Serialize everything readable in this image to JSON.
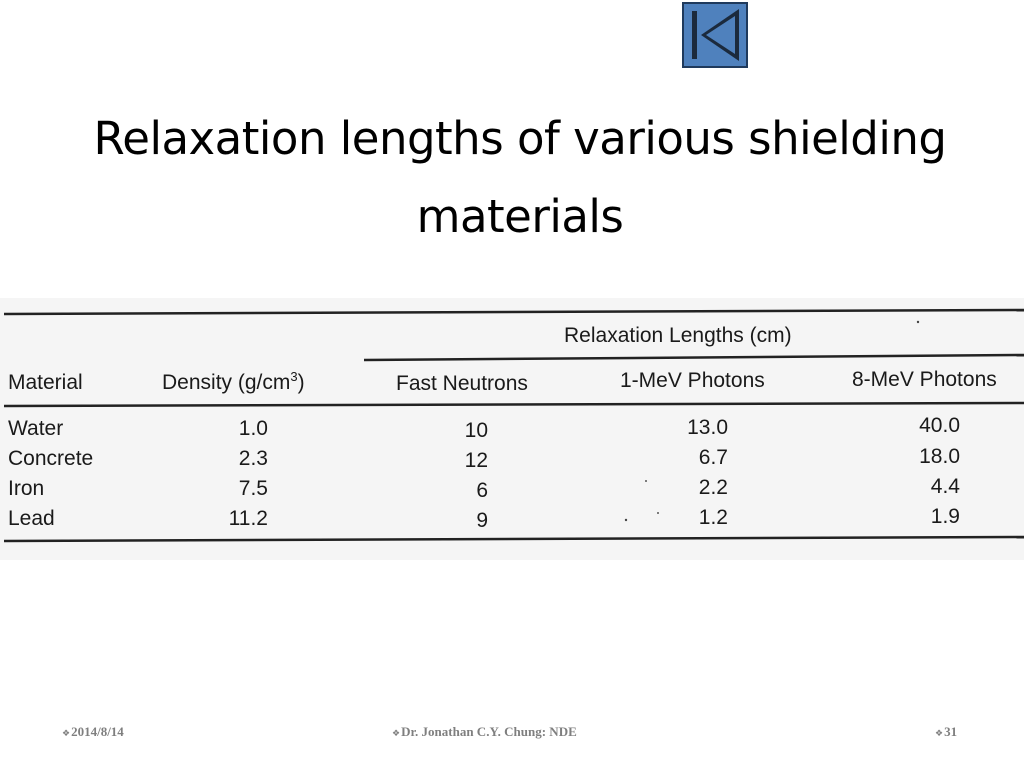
{
  "slide": {
    "title_line1": "Relaxation lengths of various shielding",
    "title_line2": "materials",
    "nav_button_icon": "skip-to-first-icon",
    "colors": {
      "nav_button": "#4f81bd",
      "footer_text": "#7f7f7f"
    }
  },
  "table": {
    "group_header": "Relaxation Lengths (cm)",
    "columns": [
      "Material",
      "Density (g/cm",
      "Fast Neutrons",
      "1-MeV Photons",
      "8-MeV Photons"
    ],
    "density_superscript": "3",
    "density_close": ")",
    "rows": [
      {
        "material": "Water",
        "density": "1.0",
        "fast_neutrons": "10",
        "mev1_photons": "13.0",
        "mev8_photons": "40.0"
      },
      {
        "material": "Concrete",
        "density": "2.3",
        "fast_neutrons": "12",
        "mev1_photons": "6.7",
        "mev8_photons": "18.0"
      },
      {
        "material": "Iron",
        "density": "7.5",
        "fast_neutrons": "6",
        "mev1_photons": "2.2",
        "mev8_photons": "4.4"
      },
      {
        "material": "Lead",
        "density": "11.2",
        "fast_neutrons": "9",
        "mev1_photons": "1.2",
        "mev8_photons": "1.9"
      }
    ]
  },
  "footer": {
    "bullet": "❖",
    "date": "2014/8/14",
    "author": "Dr. Jonathan C.Y. Chung: NDE",
    "page": "31"
  }
}
